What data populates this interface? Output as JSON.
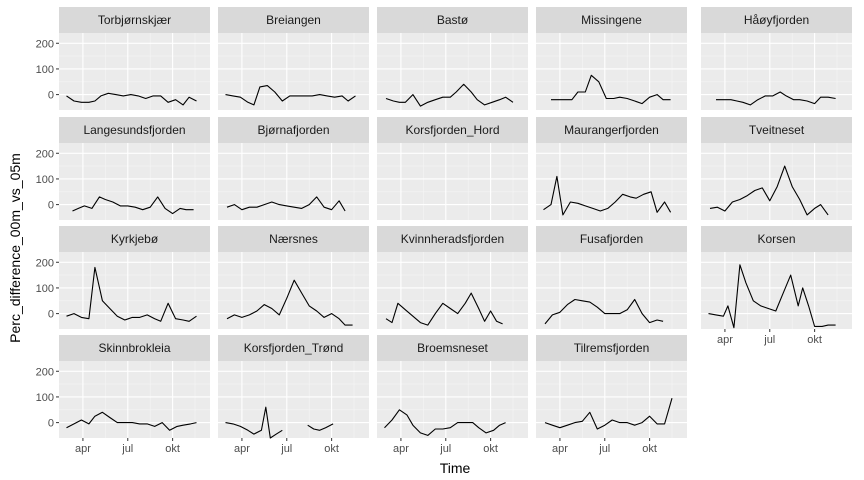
{
  "chart_data": {
    "type": "line",
    "xlabel": "Time",
    "ylabel": "Perc_difference_00m_vs_05m",
    "x_ticks": [
      {
        "label": "apr",
        "month": 4
      },
      {
        "label": "jul",
        "month": 7
      },
      {
        "label": "okt",
        "month": 10
      }
    ],
    "y_ticks": [
      0,
      100,
      200
    ],
    "ylim": [
      -60,
      240
    ],
    "xlim_month": [
      2.4,
      12.5
    ],
    "panels": [
      {
        "name": "Torbjørnskjær",
        "x": [
          2.9,
          3.4,
          3.9,
          4.4,
          4.8,
          5.2,
          5.7,
          6.2,
          6.7,
          7.2,
          7.7,
          8.2,
          8.7,
          9.2,
          9.7,
          10.2,
          10.7,
          11.1,
          11.6
        ],
        "y": [
          -5,
          -25,
          -30,
          -30,
          -25,
          -5,
          5,
          0,
          -5,
          0,
          -5,
          -15,
          -5,
          -5,
          -30,
          -20,
          -40,
          -10,
          -25
        ]
      },
      {
        "name": "Breiangen",
        "x": [
          2.9,
          3.4,
          3.9,
          4.4,
          4.8,
          5.2,
          5.7,
          6.2,
          6.7,
          7.2,
          7.7,
          8.2,
          8.7,
          9.2,
          9.7,
          10.2,
          10.7,
          11.1,
          11.6
        ],
        "y": [
          0,
          -5,
          -10,
          -30,
          -40,
          30,
          35,
          10,
          -25,
          -5,
          -5,
          -5,
          -5,
          0,
          -5,
          -10,
          -5,
          -25,
          -5
        ]
      },
      {
        "name": "Bastø",
        "x": [
          3.0,
          3.5,
          3.9,
          4.3,
          4.8,
          5.3,
          5.8,
          6.3,
          6.8,
          7.3,
          7.7,
          8.2,
          8.7,
          9.1,
          9.6,
          10.1,
          10.6,
          11.0,
          11.5
        ],
        "y": [
          -15,
          -25,
          -30,
          -30,
          0,
          -45,
          -30,
          -20,
          -10,
          -10,
          10,
          40,
          10,
          -20,
          -40,
          -30,
          -20,
          -10,
          -30
        ]
      },
      {
        "name": "Missingene",
        "x": [
          3.4,
          3.9,
          4.3,
          4.8,
          5.2,
          5.7,
          6.1,
          6.6,
          7.1,
          7.6,
          8.0,
          8.5,
          9.0,
          9.5,
          10.0,
          10.5,
          10.9,
          11.4
        ],
        "y": [
          -20,
          -20,
          -20,
          -20,
          10,
          10,
          75,
          50,
          -15,
          -15,
          -10,
          -15,
          -25,
          -35,
          -10,
          0,
          -20,
          -20
        ]
      },
      {
        "name": "Håøyfjorden",
        "x": [
          3.4,
          3.9,
          4.4,
          4.8,
          5.2,
          5.7,
          6.2,
          6.7,
          7.2,
          7.7,
          8.1,
          8.6,
          9.0,
          9.5,
          10.0,
          10.4,
          10.9,
          11.4
        ],
        "y": [
          -20,
          -20,
          -20,
          -25,
          -30,
          -40,
          -20,
          -5,
          -5,
          10,
          -5,
          -20,
          -20,
          -25,
          -35,
          -10,
          -10,
          -15
        ]
      },
      {
        "name": "Langesundsfjorden",
        "x": [
          3.3,
          3.7,
          4.1,
          4.6,
          5.1,
          5.5,
          6.0,
          6.5,
          7.0,
          7.5,
          8.0,
          8.5,
          9.0,
          9.5,
          10.0,
          10.5,
          10.9,
          11.4
        ],
        "y": [
          -25,
          -15,
          -5,
          -15,
          30,
          20,
          10,
          -5,
          -5,
          -10,
          -20,
          -10,
          30,
          -15,
          -35,
          -15,
          -20,
          -20
        ]
      },
      {
        "name": "Bjørnafjorden",
        "x": [
          3.0,
          3.5,
          4.0,
          4.5,
          5.0,
          5.5,
          6.0,
          6.5,
          7.0,
          7.5,
          8.0,
          8.5,
          9.0,
          9.5,
          10.0,
          10.5,
          10.9
        ],
        "y": [
          -10,
          0,
          -20,
          -10,
          -10,
          0,
          10,
          0,
          -5,
          -10,
          -15,
          0,
          30,
          -10,
          -20,
          15,
          -25
        ]
      },
      {
        "name": "Korsfjorden_Hord",
        "x": [],
        "y": []
      },
      {
        "name": "Maurangerfjorden",
        "x": [
          2.9,
          3.4,
          3.8,
          4.2,
          4.7,
          5.2,
          5.7,
          6.2,
          6.7,
          7.2,
          7.7,
          8.2,
          8.7,
          9.1,
          9.6,
          10.1,
          10.5,
          11.0,
          11.4
        ],
        "y": [
          -20,
          0,
          110,
          -40,
          10,
          5,
          -5,
          -15,
          -25,
          -15,
          10,
          40,
          30,
          25,
          40,
          50,
          -30,
          10,
          -30
        ]
      },
      {
        "name": "Tveitneset",
        "x": [
          3.0,
          3.5,
          4.0,
          4.5,
          5.0,
          5.5,
          6.0,
          6.5,
          7.0,
          7.5,
          8.0,
          8.5,
          9.0,
          9.5,
          10.0,
          10.4,
          10.9
        ],
        "y": [
          -15,
          -10,
          -25,
          10,
          20,
          35,
          55,
          65,
          15,
          70,
          150,
          70,
          20,
          -40,
          -15,
          0,
          -40
        ]
      },
      {
        "name": "Kyrkjebø",
        "x": [
          2.9,
          3.4,
          3.9,
          4.4,
          4.8,
          5.3,
          5.8,
          6.3,
          6.8,
          7.3,
          7.8,
          8.3,
          8.8,
          9.2,
          9.7,
          10.2,
          10.7,
          11.1,
          11.6
        ],
        "y": [
          -10,
          0,
          -15,
          -20,
          180,
          50,
          20,
          -10,
          -25,
          -15,
          -15,
          -5,
          -20,
          -30,
          40,
          -20,
          -25,
          -30,
          -10
        ]
      },
      {
        "name": "Nærsnes",
        "x": [
          3.0,
          3.5,
          4.0,
          4.5,
          5.0,
          5.5,
          6.0,
          6.5,
          7.0,
          7.5,
          8.0,
          8.5,
          9.0,
          9.5,
          10.0,
          10.5,
          10.9,
          11.4
        ],
        "y": [
          -20,
          -5,
          -15,
          -5,
          10,
          35,
          20,
          -5,
          60,
          130,
          80,
          30,
          10,
          -15,
          0,
          -20,
          -45,
          -45
        ]
      },
      {
        "name": "Kvinnheradsfjorden",
        "x": [
          3.0,
          3.4,
          3.8,
          4.3,
          4.8,
          5.3,
          5.8,
          6.3,
          6.8,
          7.3,
          7.8,
          8.3,
          8.7,
          9.2,
          9.6,
          10.0,
          10.4,
          10.8
        ],
        "y": [
          -20,
          -35,
          40,
          15,
          -10,
          -35,
          -45,
          0,
          40,
          20,
          0,
          40,
          80,
          20,
          -30,
          10,
          -30,
          -40
        ]
      },
      {
        "name": "Fusafjorden",
        "x": [
          3.0,
          3.5,
          4.0,
          4.5,
          5.0,
          5.5,
          6.0,
          6.5,
          7.0,
          7.5,
          8.0,
          8.5,
          9.0,
          9.5,
          10.0,
          10.5,
          10.9
        ],
        "y": [
          -40,
          -5,
          5,
          35,
          55,
          50,
          45,
          25,
          0,
          0,
          0,
          15,
          55,
          0,
          -35,
          -25,
          -30
        ]
      },
      {
        "name": "Korsen",
        "x": [
          2.9,
          3.4,
          3.9,
          4.2,
          4.6,
          5.0,
          5.4,
          5.9,
          6.4,
          6.9,
          7.4,
          7.9,
          8.4,
          8.9,
          9.2,
          9.6,
          10.0,
          10.5,
          10.9,
          11.4
        ],
        "y": [
          0,
          -5,
          -10,
          30,
          -55,
          190,
          120,
          50,
          30,
          20,
          10,
          80,
          150,
          30,
          100,
          30,
          -50,
          -50,
          -45,
          -45
        ]
      },
      {
        "name": "Skinnbrokleia",
        "x": [
          2.9,
          3.4,
          3.9,
          4.4,
          4.8,
          5.3,
          5.8,
          6.3,
          6.8,
          7.3,
          7.8,
          8.3,
          8.8,
          9.3,
          9.8,
          10.3,
          10.7,
          11.2,
          11.6
        ],
        "y": [
          -20,
          -5,
          10,
          -5,
          25,
          40,
          20,
          0,
          0,
          0,
          -5,
          -5,
          -15,
          0,
          -30,
          -15,
          -10,
          -5,
          0
        ]
      },
      {
        "name": "Korsfjorden_Trønd",
        "x": [
          2.9,
          3.4,
          3.9,
          4.4,
          4.8,
          5.3,
          5.6,
          5.9,
          6.3,
          6.7,
          8.4,
          8.8,
          9.2,
          9.6,
          10.1
        ],
        "y": [
          0,
          -5,
          -15,
          -30,
          -45,
          -30,
          60,
          -60,
          -45,
          -30,
          -10,
          -25,
          -30,
          -20,
          -5
        ],
        "segments": [
          [
            0,
            9
          ],
          [
            10,
            14
          ]
        ]
      },
      {
        "name": "Broemsneset",
        "x": [
          2.9,
          3.4,
          3.9,
          4.4,
          4.8,
          5.3,
          5.8,
          6.3,
          6.8,
          7.3,
          7.8,
          8.3,
          8.8,
          9.2,
          9.7,
          10.2,
          10.6,
          11.0
        ],
        "y": [
          -20,
          10,
          50,
          30,
          -10,
          -40,
          -50,
          -25,
          -25,
          -20,
          0,
          0,
          0,
          -20,
          -40,
          -30,
          -10,
          0
        ]
      },
      {
        "name": "Tilremsfjorden",
        "x": [
          3.0,
          3.5,
          4.0,
          4.5,
          5.0,
          5.5,
          6.0,
          6.5,
          7.0,
          7.5,
          8.0,
          8.5,
          9.0,
          9.5,
          10.0,
          10.5,
          11.0,
          11.5
        ],
        "y": [
          0,
          -10,
          -20,
          -10,
          0,
          5,
          40,
          -25,
          -10,
          10,
          0,
          0,
          -10,
          0,
          25,
          -5,
          -5,
          95
        ]
      }
    ]
  }
}
